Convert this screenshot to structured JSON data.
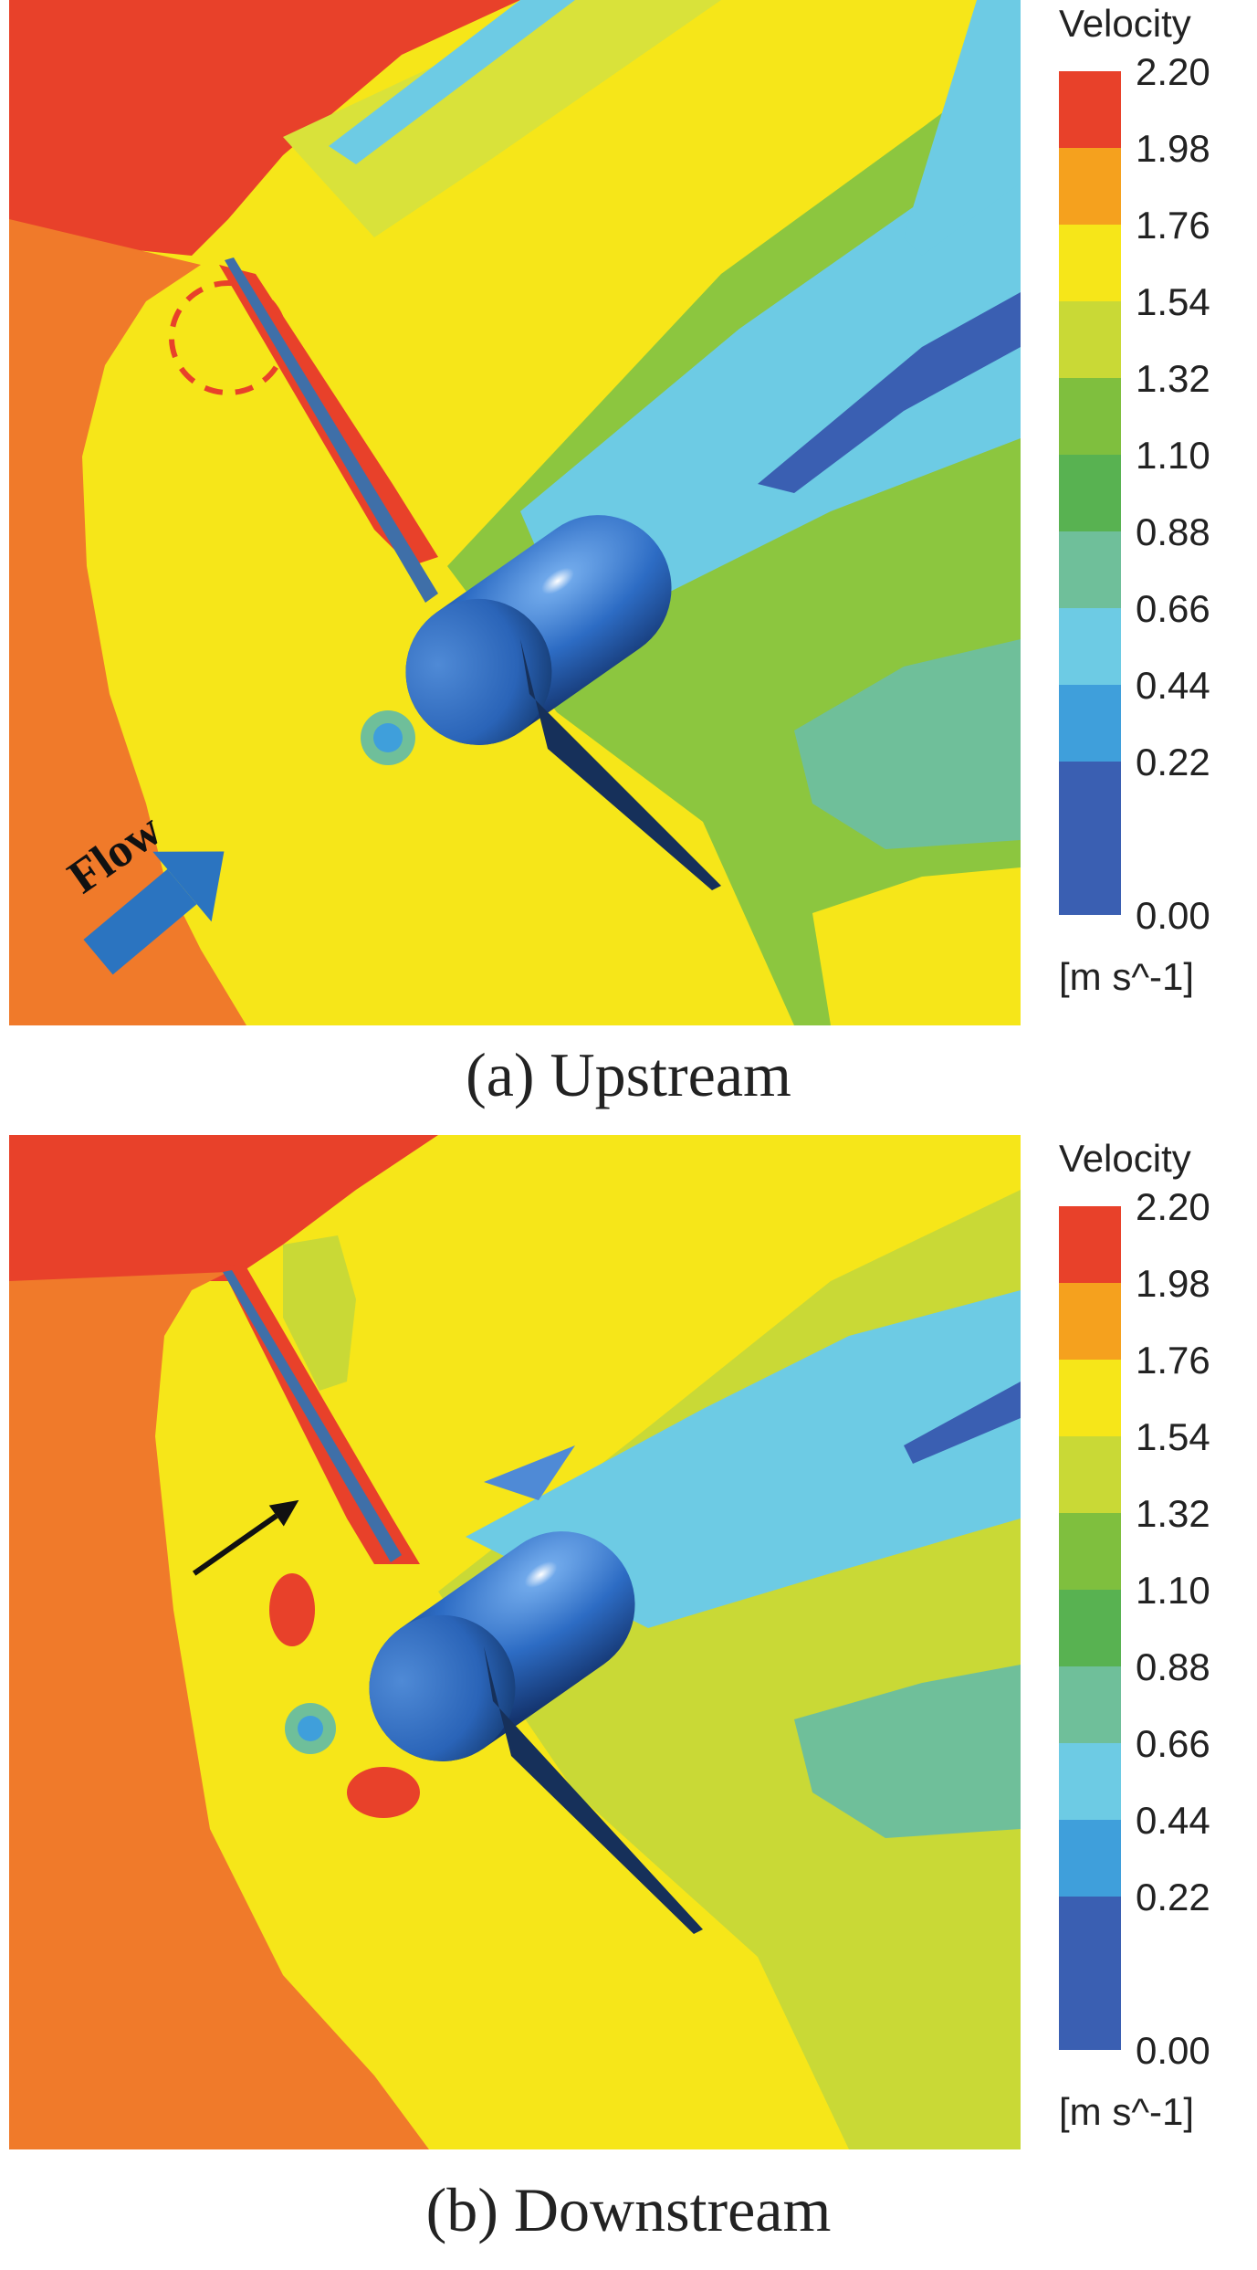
{
  "colorbar": {
    "title": "Velocity",
    "unit": "[m s^-1]",
    "ticks": [
      "2.20",
      "1.98",
      "1.76",
      "1.54",
      "1.32",
      "1.10",
      "0.88",
      "0.66",
      "0.44",
      "0.22",
      "0.00"
    ],
    "colors": [
      "#e8412a",
      "#f5a11e",
      "#f6e619",
      "#c9d936",
      "#7fbf3e",
      "#58b251",
      "#6fbf9a",
      "#6dcbe4",
      "#3f9fdb",
      "#3a5fb2",
      "#3a5fb2"
    ]
  },
  "panels": [
    {
      "caption": "(a) Upstream",
      "flow_label": "Flow"
    },
    {
      "caption": "(b) Downstream"
    }
  ],
  "colors": {
    "red": "#e8412a",
    "orange": "#f07a2a",
    "yellow": "#f6e619",
    "yellow_green": "#d9e23a",
    "green": "#8cc63f",
    "teal": "#6fbf9a",
    "light_blue": "#6dcbe4",
    "blue": "#3f9fdb",
    "dark_blue": "#3a5fb2",
    "turbine_body": "#2f6fc7"
  }
}
